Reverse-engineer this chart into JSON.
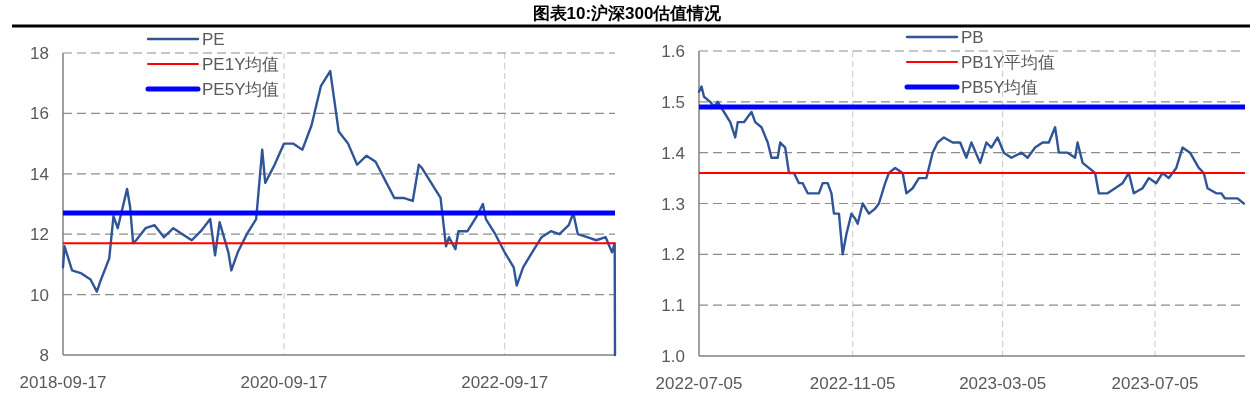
{
  "chart_data": [
    {
      "type": "line",
      "title": "图表10:沪深300估值情况",
      "xlim": [
        "2018-09-17",
        "2023-09-17"
      ],
      "xticks": [
        "2018-09-17",
        "2020-09-17",
        "2022-09-17"
      ],
      "ylim": [
        8,
        18
      ],
      "yticks": [
        8,
        10,
        12,
        14,
        16,
        18
      ],
      "grid": true,
      "legend": "top left",
      "series": [
        {
          "name": "PE",
          "color": "#2f5597",
          "x": [
            "2018-09-17",
            "2018-09-22",
            "2018-10-17",
            "2018-11-17",
            "2018-12-17",
            "2019-01-07",
            "2019-01-17",
            "2019-02-17",
            "2019-03-03",
            "2019-03-17",
            "2019-04-17",
            "2019-04-27",
            "2019-05-07",
            "2019-05-17",
            "2019-06-17",
            "2019-07-17",
            "2019-08-17",
            "2019-09-17",
            "2019-10-17",
            "2019-11-17",
            "2019-12-17",
            "2020-01-17",
            "2020-02-02",
            "2020-02-17",
            "2020-03-17",
            "2020-03-27",
            "2020-04-17",
            "2020-05-17",
            "2020-06-17",
            "2020-07-07",
            "2020-07-17",
            "2020-08-17",
            "2020-09-17",
            "2020-10-17",
            "2020-11-17",
            "2020-12-17",
            "2021-01-17",
            "2021-02-17",
            "2021-03-17",
            "2021-04-17",
            "2021-05-17",
            "2021-06-17",
            "2021-07-17",
            "2021-08-17",
            "2021-09-17",
            "2021-10-17",
            "2021-11-17",
            "2021-12-07",
            "2021-12-17",
            "2022-01-17",
            "2022-02-17",
            "2022-03-07",
            "2022-03-17",
            "2022-04-07",
            "2022-04-17",
            "2022-05-17",
            "2022-06-17",
            "2022-07-07",
            "2022-07-17",
            "2022-08-17",
            "2022-09-17",
            "2022-10-17",
            "2022-10-27",
            "2022-11-17",
            "2022-12-17",
            "2023-01-17",
            "2023-02-17",
            "2023-03-17",
            "2023-04-17",
            "2023-05-02",
            "2023-05-17",
            "2023-06-17",
            "2023-07-17",
            "2023-08-17",
            "2023-09-07",
            "2023-09-16",
            "2023-09-17"
          ],
          "values": [
            10.9,
            11.6,
            10.8,
            10.7,
            10.5,
            10.1,
            10.4,
            11.2,
            12.6,
            12.2,
            13.5,
            12.9,
            11.7,
            11.8,
            12.2,
            12.3,
            11.9,
            12.2,
            12.0,
            11.8,
            12.1,
            12.5,
            11.3,
            12.4,
            11.4,
            10.8,
            11.4,
            12.0,
            12.5,
            14.8,
            13.7,
            14.3,
            15.0,
            15.0,
            14.8,
            15.6,
            16.9,
            17.4,
            15.4,
            15.0,
            14.3,
            14.6,
            14.4,
            13.8,
            13.2,
            13.2,
            13.1,
            14.3,
            14.2,
            13.7,
            13.2,
            11.6,
            11.9,
            11.5,
            12.1,
            12.1,
            12.6,
            13.0,
            12.5,
            12.0,
            11.4,
            10.9,
            10.3,
            10.9,
            11.4,
            11.9,
            12.1,
            12.0,
            12.3,
            12.7,
            12.0,
            11.9,
            11.8,
            11.9,
            11.4,
            11.7,
            8
          ]
        }
      ],
      "ref_lines": [
        {
          "axis": "y",
          "value": 11.7,
          "label": "PE1Y均值",
          "color": "#ff0000"
        },
        {
          "axis": "y",
          "value": 12.7,
          "label": "PE5Y均值",
          "color": "#0000ff"
        }
      ]
    },
    {
      "type": "line",
      "xlim": [
        "2022-07-05",
        "2023-09-15"
      ],
      "xticks": [
        "2022-07-05",
        "2022-11-05",
        "2023-03-05",
        "2023-07-05"
      ],
      "ylim": [
        1.0,
        1.6
      ],
      "yticks": [
        {
          "value": 1.0,
          "label": "1.0"
        },
        1.1,
        1.2,
        1.3,
        1.4,
        1.5,
        1.6
      ],
      "grid": true,
      "legend": "top",
      "series": [
        {
          "name": "PB",
          "color": "#2f5597",
          "x": [
            "2022-07-05",
            "2022-07-07",
            "2022-07-09",
            "2022-07-14",
            "2022-07-17",
            "2022-07-20",
            "2022-07-25",
            "2022-07-30",
            "2022-08-03",
            "2022-08-05",
            "2022-08-10",
            "2022-08-13",
            "2022-08-16",
            "2022-08-19",
            "2022-08-24",
            "2022-08-29",
            "2022-09-01",
            "2022-09-06",
            "2022-09-08",
            "2022-09-12",
            "2022-09-15",
            "2022-09-19",
            "2022-09-23",
            "2022-09-26",
            "2022-09-30",
            "2022-10-09",
            "2022-10-12",
            "2022-10-16",
            "2022-10-19",
            "2022-10-21",
            "2022-10-25",
            "2022-10-28",
            "2022-10-31",
            "2022-11-04",
            "2022-11-07",
            "2022-11-09",
            "2022-11-13",
            "2022-11-18",
            "2022-11-23",
            "2022-11-26",
            "2022-12-01",
            "2022-12-04",
            "2022-12-09",
            "2022-12-15",
            "2022-12-18",
            "2022-12-23",
            "2022-12-28",
            "2023-01-03",
            "2023-01-08",
            "2023-01-12",
            "2023-01-17",
            "2023-01-24",
            "2023-01-30",
            "2023-02-04",
            "2023-02-08",
            "2023-02-15",
            "2023-02-20",
            "2023-02-24",
            "2023-03-01",
            "2023-03-06",
            "2023-03-12",
            "2023-03-20",
            "2023-03-25",
            "2023-03-31",
            "2023-04-06",
            "2023-04-11",
            "2023-04-16",
            "2023-04-19",
            "2023-04-26",
            "2023-05-02",
            "2023-05-04",
            "2023-05-08",
            "2023-05-13",
            "2023-05-18",
            "2023-05-21",
            "2023-05-28",
            "2023-06-03",
            "2023-06-09",
            "2023-06-14",
            "2023-06-18",
            "2023-06-25",
            "2023-06-30",
            "2023-07-06",
            "2023-07-11",
            "2023-07-16",
            "2023-07-22",
            "2023-07-27",
            "2023-08-02",
            "2023-08-09",
            "2023-08-13",
            "2023-08-16",
            "2023-08-23",
            "2023-08-27",
            "2023-08-30",
            "2023-09-04",
            "2023-09-09",
            "2023-09-14"
          ],
          "values": [
            1.52,
            1.53,
            1.51,
            1.5,
            1.49,
            1.5,
            1.48,
            1.46,
            1.43,
            1.46,
            1.46,
            1.47,
            1.48,
            1.46,
            1.45,
            1.42,
            1.39,
            1.39,
            1.42,
            1.41,
            1.36,
            1.36,
            1.34,
            1.34,
            1.32,
            1.32,
            1.34,
            1.34,
            1.32,
            1.28,
            1.28,
            1.2,
            1.24,
            1.28,
            1.27,
            1.26,
            1.3,
            1.28,
            1.29,
            1.3,
            1.34,
            1.36,
            1.37,
            1.36,
            1.32,
            1.33,
            1.35,
            1.35,
            1.4,
            1.42,
            1.43,
            1.42,
            1.42,
            1.39,
            1.42,
            1.38,
            1.42,
            1.41,
            1.43,
            1.4,
            1.39,
            1.4,
            1.39,
            1.41,
            1.42,
            1.42,
            1.45,
            1.4,
            1.4,
            1.39,
            1.42,
            1.38,
            1.37,
            1.36,
            1.32,
            1.32,
            1.33,
            1.34,
            1.36,
            1.32,
            1.33,
            1.35,
            1.34,
            1.36,
            1.35,
            1.37,
            1.41,
            1.4,
            1.37,
            1.36,
            1.33,
            1.32,
            1.32,
            1.31,
            1.31,
            1.31,
            1.3
          ]
        }
      ],
      "ref_lines": [
        {
          "axis": "y",
          "value": 1.36,
          "label": "PB1Y平均值",
          "color": "#ff0000"
        },
        {
          "axis": "y",
          "value": 1.49,
          "label": "PB5Y均值",
          "color": "#0000ff"
        }
      ]
    }
  ]
}
